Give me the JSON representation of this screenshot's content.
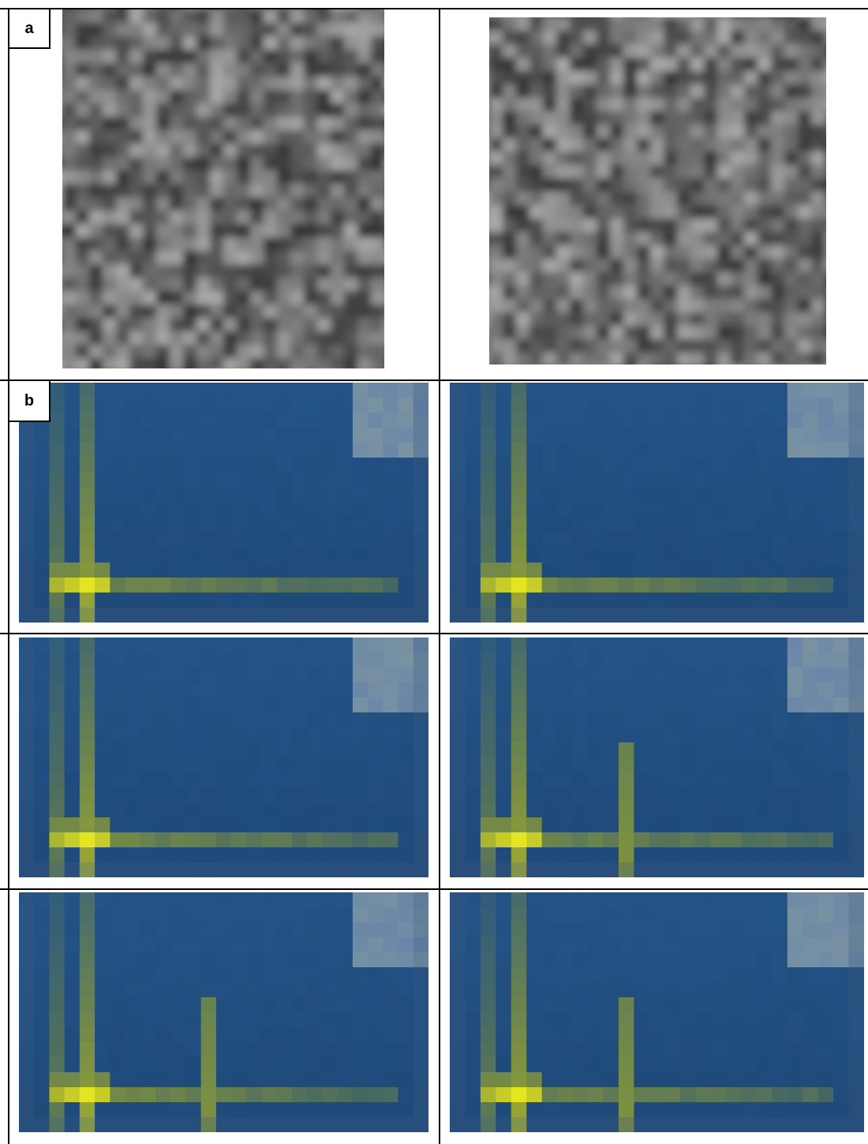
{
  "labels": {
    "a": "a",
    "b": "b"
  },
  "panel_a": {
    "description_kind": "grayscale-texture-images",
    "images": [
      {
        "id": "a-left",
        "seed": 7
      },
      {
        "id": "a-right",
        "seed": 19
      }
    ]
  },
  "panel_b": {
    "palette": {
      "background": "#245487",
      "dark": "#1f4a7a",
      "peak": "#f4f41a",
      "mid": "#8a9a3a",
      "legend": "#6a86a8"
    },
    "maps": [
      {
        "id": "b-r1-left",
        "secondary_peak_col": null,
        "seed": 3
      },
      {
        "id": "b-r1-right",
        "secondary_peak_col": null,
        "seed": 5
      },
      {
        "id": "b-r2-left",
        "secondary_peak_col": null,
        "seed": 11
      },
      {
        "id": "b-r2-right",
        "secondary_peak_col": 11,
        "seed": 13
      },
      {
        "id": "b-r3-left",
        "secondary_peak_col": 12,
        "seed": 17
      },
      {
        "id": "b-r3-right",
        "secondary_peak_col": 11,
        "seed": 23
      }
    ]
  }
}
